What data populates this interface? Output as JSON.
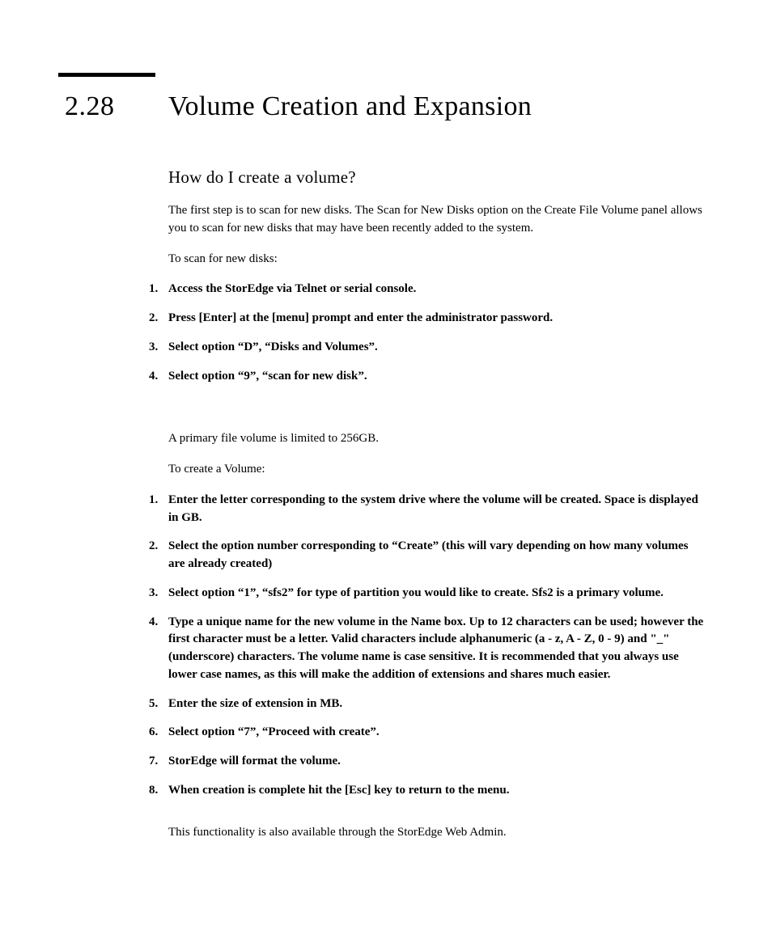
{
  "text_color": "#000000",
  "background_color": "#ffffff",
  "rule_color": "#000000",
  "section_number": "2.28",
  "section_title": "Volume Creation and Expansion",
  "subheading": "How do I create a volume?",
  "intro_para": "The first step is to scan for new disks. The Scan for New Disks option on the Create File Volume panel allows you to scan for new disks that may have been recently added to the system.",
  "scan_lead": "To scan for new disks:",
  "scan_steps": [
    "Access the StorEdge via Telnet or serial console.",
    "Press [Enter] at the [menu] prompt and enter the administrator password.",
    "Select option “D”, “Disks and Volumes”.",
    "Select option “9”, “scan for new disk”."
  ],
  "limit_para": "A primary file volume is limited to 256GB.",
  "create_lead": "To create a Volume:",
  "create_steps": [
    "Enter the letter corresponding to the system drive where the volume will be created. Space is displayed in GB.",
    "Select the option number corresponding to “Create” (this will vary depending on how many volumes are already created)",
    "Select option “1”, “sfs2” for type of partition you would like to create. Sfs2 is a primary volume.",
    "Type a unique name for the new volume in the Name box. Up to 12 characters can be used; however the first character must be a letter. Valid characters include alphanumeric (a - z, A - Z, 0 - 9) and \"_\" (underscore) characters. The volume name is case sensitive. It is recommended that you always use lower case names, as this will make the addition of extensions and shares much easier.",
    "Enter the size of extension in MB.",
    "Select option “7”, “Proceed with create”.",
    "StorEdge will format the volume.",
    "When creation is complete hit the [Esc] key to return to the menu."
  ],
  "outro_para": "This functionality is also available through the StorEdge Web Admin.",
  "fonts": {
    "title_family": "Palatino",
    "title_size_pt": 26,
    "subheading_size_pt": 16,
    "body_size_pt": 11
  }
}
